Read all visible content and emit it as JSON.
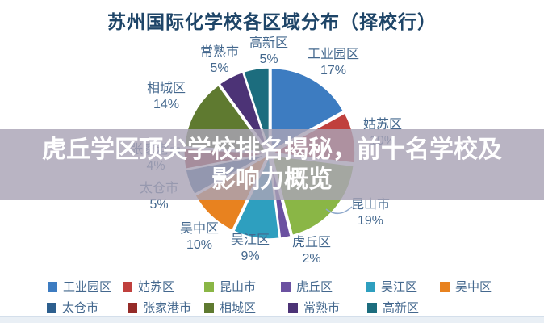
{
  "title": "苏州国际化学校各区域分布（择校行）",
  "banner": {
    "line1": "虎丘学区顶尖学校排名揭秘，前十名学校及",
    "line2": "影响力概览",
    "bg_color": "#A9A3B6",
    "text_color": "#FFFFFF"
  },
  "chart_data": {
    "type": "pie",
    "title": "苏州国际化学校各区域分布（择校行）",
    "categories": [
      "工业园区",
      "姑苏区",
      "昆山市",
      "虎丘区",
      "吴江区",
      "吴中区",
      "太仓市",
      "张家港市",
      "相城区",
      "常熟市",
      "高新区"
    ],
    "values": [
      17,
      10,
      19,
      2,
      9,
      10,
      5,
      4,
      14,
      5,
      5
    ],
    "unit": "%",
    "colors": [
      "#3D7CC1",
      "#C0403D",
      "#8AB646",
      "#6B51A1",
      "#2E9FBF",
      "#E8821F",
      "#2D5F8E",
      "#952B28",
      "#5F7A30",
      "#4C3376",
      "#1C6D7E"
    ],
    "direction": "clockwise",
    "start_angle_deg": 0,
    "legend_position": "bottom",
    "legend_rows": [
      [
        "工业园区",
        "姑苏区",
        "昆山市",
        "虎丘区",
        "吴江区",
        "吴中区"
      ],
      [
        "太仓市",
        "张家港市",
        "相城区",
        "常熟市",
        "高新区"
      ]
    ],
    "label_color": "#44688E"
  }
}
